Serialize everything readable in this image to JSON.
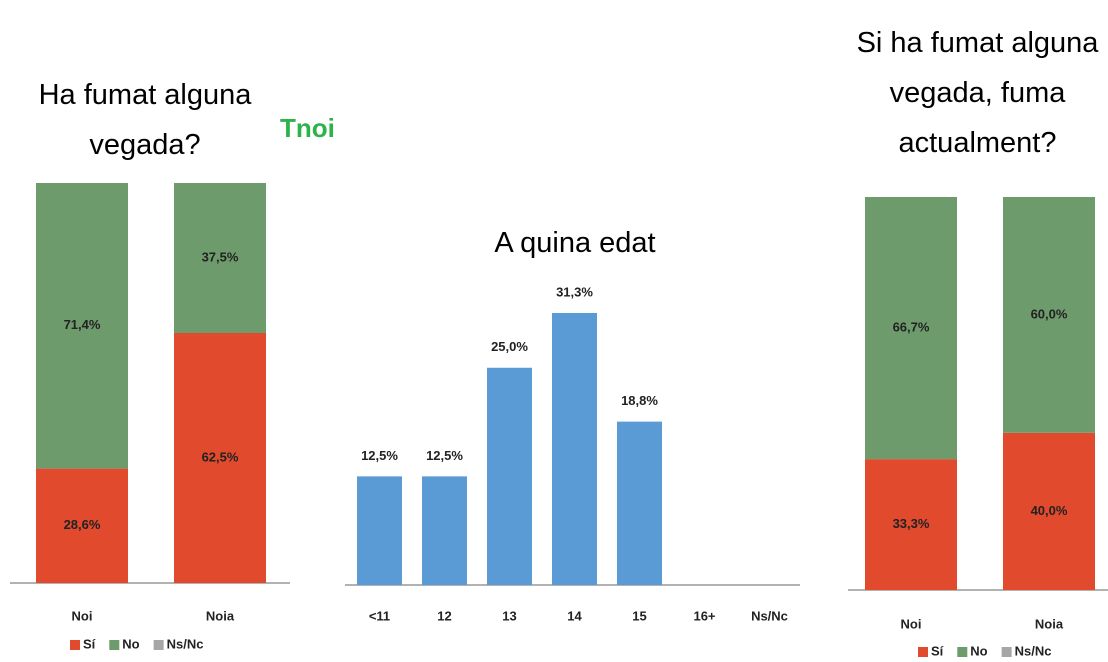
{
  "chart_data": [
    {
      "type": "stacked_bar",
      "title": "Ha fumat alguna vegada?",
      "annotation": "Tnoi",
      "categories": [
        "Noi",
        "Noia"
      ],
      "series": [
        {
          "name": "Sí",
          "color": "#e24a2e",
          "values": [
            28.6,
            62.5
          ],
          "value_labels": [
            "28,6%",
            "62,5%"
          ]
        },
        {
          "name": "No",
          "color": "#6e9b6c",
          "values": [
            71.4,
            37.5
          ],
          "value_labels": [
            "71,4%",
            "37,5%"
          ]
        },
        {
          "name": "Ns/Nc",
          "color": "#a6a6a6",
          "values": [
            0,
            0
          ],
          "value_labels": [
            null,
            null
          ]
        }
      ]
    },
    {
      "type": "bar",
      "title": "A quina edat",
      "color": "#5b9bd5",
      "categories": [
        "<11",
        "12",
        "13",
        "14",
        "15",
        "16+",
        "Ns/Nc"
      ],
      "values": [
        12.5,
        12.5,
        25.0,
        31.3,
        18.8,
        0,
        0
      ],
      "value_labels": [
        "12,5%",
        "12,5%",
        "25,0%",
        "31,3%",
        "18,8%",
        null,
        null
      ]
    },
    {
      "type": "stacked_bar",
      "title": "Si ha fumat alguna vegada, fuma actualment?",
      "categories": [
        "Noi",
        "Noia"
      ],
      "series": [
        {
          "name": "Sí",
          "color": "#e24a2e",
          "values": [
            33.3,
            40.0
          ],
          "value_labels": [
            "33,3%",
            "40,0%"
          ]
        },
        {
          "name": "No",
          "color": "#6e9b6c",
          "values": [
            66.7,
            60.0
          ],
          "value_labels": [
            "66,7%",
            "60,0%"
          ]
        },
        {
          "name": "Ns/Nc",
          "color": "#a6a6a6",
          "values": [
            0,
            0
          ],
          "value_labels": [
            null,
            null
          ]
        }
      ]
    }
  ]
}
